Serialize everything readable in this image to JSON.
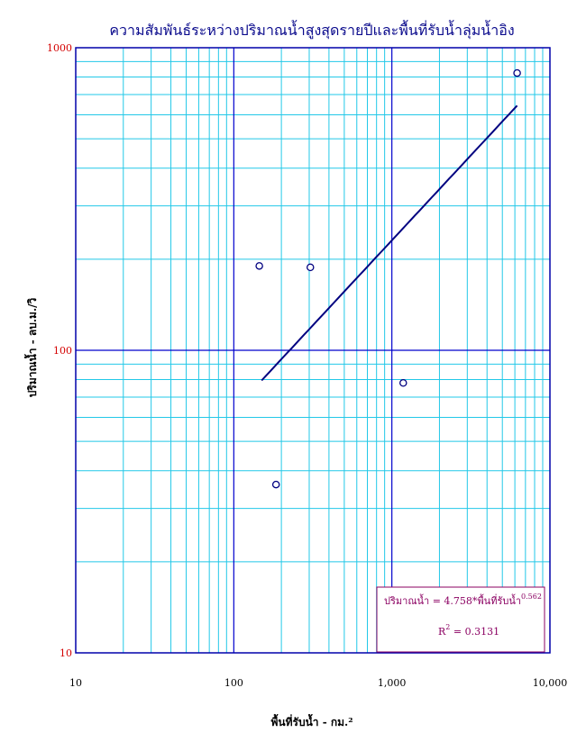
{
  "chart_data": {
    "type": "scatter",
    "title": "ความสัมพันธ์ระหว่างปริมาณน้ำสูงสุดรายปีและพื้นที่รับน้ำลุ่มน้ำอิง",
    "xlabel": "พื้นที่รับน้ำ - กม.²",
    "ylabel": "ปริมาณน้ำ - ลบ.ม./วิ",
    "x_scale": "log",
    "y_scale": "log",
    "xlim": [
      10,
      10000
    ],
    "ylim": [
      10,
      1000
    ],
    "x_tick_labels": [
      "10",
      "100",
      "1,000",
      "10,000"
    ],
    "y_tick_labels": [
      "10",
      "100",
      "1000"
    ],
    "grid": true,
    "points": [
      {
        "x": 145,
        "y": 190
      },
      {
        "x": 305,
        "y": 188
      },
      {
        "x": 185,
        "y": 36
      },
      {
        "x": 1180,
        "y": 78
      },
      {
        "x": 6200,
        "y": 825
      }
    ],
    "trendline": {
      "coefficient": 4.758,
      "exponent": 0.562,
      "x_range": [
        150,
        6200
      ]
    },
    "annotation": {
      "equation_text": "ปริมาณน้ำ = 4.758*พื้นที่รับน้ำ",
      "exponent_text": "0.562",
      "r2_label": "R",
      "r2_sup": "2",
      "r2_value_text": " = 0.3131"
    },
    "colors": {
      "frame": "#0000aa",
      "major_grid": "#0000cc",
      "minor_grid": "#22c8e8",
      "trendline": "#000080",
      "marker": "#000080",
      "annotation_border": "#8b0062",
      "annotation_text": "#8b0062"
    }
  }
}
